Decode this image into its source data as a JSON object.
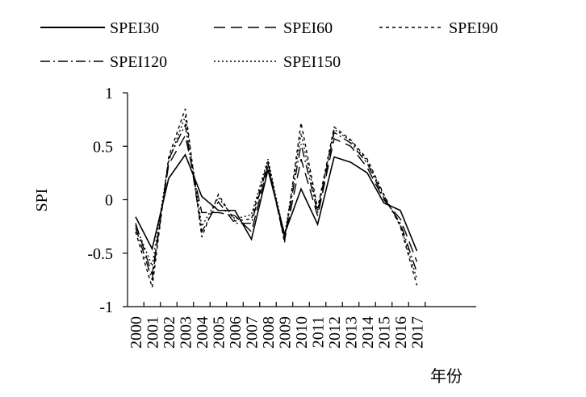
{
  "chart_data": {
    "type": "line",
    "title": "",
    "xlabel": "年份",
    "ylabel": "SPI",
    "ylim": [
      -1,
      1
    ],
    "yticks": [
      {
        "value": 1,
        "label": "1"
      },
      {
        "value": 0.5,
        "label": "0.5"
      },
      {
        "value": 0,
        "label": "0"
      },
      {
        "value": -0.5,
        "label": "-0.5"
      },
      {
        "value": -1,
        "label": "-1"
      }
    ],
    "categories": [
      "2000",
      "2001",
      "2002",
      "2003",
      "2004",
      "2005",
      "2006",
      "2007",
      "2008",
      "2009",
      "2010",
      "2011",
      "2012",
      "2013",
      "2014",
      "2015",
      "2016",
      "2017"
    ],
    "grid": false,
    "legend_position": "top",
    "series": [
      {
        "name": "SPEI30",
        "dash": "",
        "values": [
          -0.16,
          -0.46,
          0.2,
          0.42,
          0.03,
          -0.1,
          -0.1,
          -0.37,
          0.28,
          -0.32,
          0.1,
          -0.23,
          0.4,
          0.35,
          0.25,
          -0.03,
          -0.1,
          -0.48
        ]
      },
      {
        "name": "SPEI60",
        "dash": "14 7",
        "values": [
          -0.22,
          -0.7,
          0.33,
          0.6,
          -0.12,
          -0.12,
          -0.15,
          -0.3,
          0.32,
          -0.38,
          0.38,
          -0.15,
          0.57,
          0.5,
          0.3,
          0.0,
          -0.18,
          -0.58
        ]
      },
      {
        "name": "SPEI90",
        "dash": "4 4",
        "values": [
          -0.3,
          -0.82,
          0.4,
          0.85,
          -0.35,
          0.05,
          -0.2,
          -0.18,
          0.36,
          -0.4,
          0.72,
          -0.08,
          0.68,
          0.56,
          0.38,
          0.05,
          -0.25,
          -0.8
        ]
      },
      {
        "name": "SPEI120",
        "dash": "12 4 2 4",
        "values": [
          -0.26,
          -0.75,
          0.38,
          0.7,
          -0.3,
          -0.02,
          -0.22,
          -0.22,
          0.34,
          -0.36,
          0.52,
          -0.12,
          0.63,
          0.53,
          0.34,
          0.02,
          -0.22,
          -0.68
        ]
      },
      {
        "name": "SPEI150",
        "dash": "2 3",
        "values": [
          -0.24,
          -0.62,
          0.36,
          0.78,
          -0.25,
          0.02,
          -0.18,
          -0.14,
          0.38,
          -0.34,
          0.62,
          -0.1,
          0.66,
          0.55,
          0.36,
          0.04,
          -0.24,
          -0.74
        ]
      }
    ]
  }
}
